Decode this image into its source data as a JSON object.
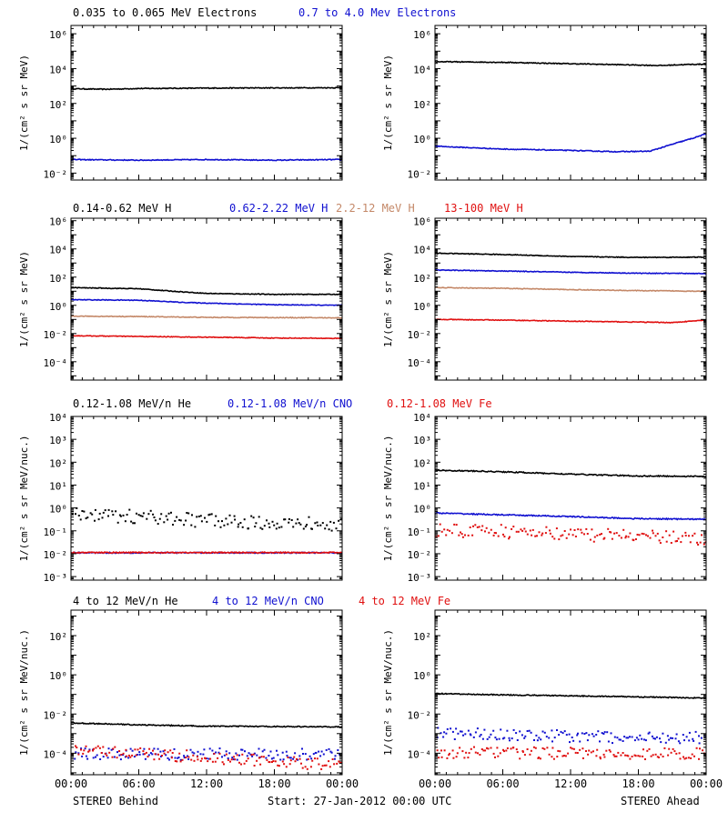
{
  "colors": {
    "black": "#000000",
    "blue": "#1010d0",
    "tan": "#c48868",
    "red": "#e01010"
  },
  "footer": {
    "left": "STEREO Behind",
    "center": "Start: 27-Jan-2012 00:00 UTC",
    "right": "STEREO Ahead"
  },
  "chart_data": [
    {
      "id": "electrons-behind",
      "type": "line",
      "scale": "log",
      "ylim": [
        0.004,
        3000000
      ],
      "yticks": [
        [
          "10⁻²",
          0.01
        ],
        [
          "10⁰",
          1
        ],
        [
          "10²",
          100
        ],
        [
          "10⁴",
          10000
        ],
        [
          "10⁶",
          1000000
        ]
      ],
      "ylabel": "1/(cm² s sr MeV)",
      "xticks": [],
      "header": [
        {
          "text": "0.035 to 0.065 MeV Electrons",
          "color": "#000000"
        },
        {
          "text": "0.7 to 4.0 Mev Electrons",
          "color": "#1010d0"
        }
      ],
      "series": [
        {
          "color": "#000000",
          "style": "line",
          "points": [
            [
              0,
              700
            ],
            [
              3,
              650
            ],
            [
              6,
              720
            ],
            [
              12,
              760
            ],
            [
              18,
              780
            ],
            [
              24,
              800
            ]
          ]
        },
        {
          "color": "#1010d0",
          "style": "line",
          "points": [
            [
              0,
              0.06
            ],
            [
              6,
              0.055
            ],
            [
              12,
              0.06
            ],
            [
              18,
              0.055
            ],
            [
              24,
              0.06
            ]
          ]
        }
      ]
    },
    {
      "id": "electrons-ahead",
      "type": "line",
      "scale": "log",
      "ylim": [
        0.004,
        3000000
      ],
      "yticks": [
        [
          "10⁻²",
          0.01
        ],
        [
          "10⁰",
          1
        ],
        [
          "10²",
          100
        ],
        [
          "10⁴",
          10000
        ],
        [
          "10⁶",
          1000000
        ]
      ],
      "ylabel": "1/(cm² s sr MeV)",
      "xticks": [],
      "header": [],
      "series": [
        {
          "color": "#000000",
          "style": "line",
          "points": [
            [
              0,
              25000
            ],
            [
              6,
              23000
            ],
            [
              12,
              19000
            ],
            [
              18,
              16000
            ],
            [
              20,
              15000
            ],
            [
              22,
              17000
            ],
            [
              24,
              18000
            ]
          ]
        },
        {
          "color": "#1010d0",
          "style": "line",
          "points": [
            [
              0,
              0.35
            ],
            [
              6,
              0.24
            ],
            [
              12,
              0.2
            ],
            [
              16,
              0.17
            ],
            [
              19,
              0.18
            ],
            [
              21,
              0.45
            ],
            [
              23,
              1.1
            ],
            [
              24,
              1.8
            ]
          ]
        }
      ]
    },
    {
      "id": "protons-behind",
      "type": "line",
      "scale": "log",
      "ylim": [
        5e-06,
        1500000
      ],
      "yticks": [
        [
          "10⁻⁴",
          0.0001
        ],
        [
          "10⁻²",
          0.01
        ],
        [
          "10⁰",
          1
        ],
        [
          "10²",
          100
        ],
        [
          "10⁴",
          10000
        ],
        [
          "10⁶",
          1000000
        ]
      ],
      "ylabel": "1/(cm² s sr MeV)",
      "xticks": [],
      "header": [
        {
          "text": "0.14-0.62 MeV H",
          "color": "#000000"
        },
        {
          "text": "0.62-2.22 MeV H",
          "color": "#1010d0"
        },
        {
          "text": "2.2-12 MeV H",
          "color": "#c48868"
        },
        {
          "text": "13-100 MeV H",
          "color": "#e01010"
        }
      ],
      "series": [
        {
          "color": "#000000",
          "style": "line",
          "points": [
            [
              0,
              18
            ],
            [
              6,
              15
            ],
            [
              9,
              10
            ],
            [
              12,
              7
            ],
            [
              18,
              6
            ],
            [
              24,
              6
            ]
          ]
        },
        {
          "color": "#1010d0",
          "style": "line",
          "points": [
            [
              0,
              2.5
            ],
            [
              6,
              2.3
            ],
            [
              10,
              1.6
            ],
            [
              14,
              1.3
            ],
            [
              18,
              1.1
            ],
            [
              24,
              1.0
            ]
          ]
        },
        {
          "color": "#c48868",
          "style": "line",
          "points": [
            [
              0,
              0.17
            ],
            [
              6,
              0.16
            ],
            [
              12,
              0.14
            ],
            [
              18,
              0.135
            ],
            [
              24,
              0.13
            ]
          ]
        },
        {
          "color": "#e01010",
          "style": "line",
          "points": [
            [
              0,
              0.007
            ],
            [
              6,
              0.0062
            ],
            [
              12,
              0.0055
            ],
            [
              18,
              0.0048
            ],
            [
              24,
              0.0045
            ]
          ]
        }
      ]
    },
    {
      "id": "protons-ahead",
      "type": "line",
      "scale": "log",
      "ylim": [
        5e-06,
        1500000
      ],
      "yticks": [
        [
          "10⁻⁴",
          0.0001
        ],
        [
          "10⁻²",
          0.01
        ],
        [
          "10⁰",
          1
        ],
        [
          "10²",
          100
        ],
        [
          "10⁴",
          10000
        ],
        [
          "10⁶",
          1000000
        ]
      ],
      "ylabel": "1/(cm² s sr MeV)",
      "xticks": [],
      "header": [],
      "series": [
        {
          "color": "#000000",
          "style": "line",
          "points": [
            [
              0,
              5000
            ],
            [
              6,
              4000
            ],
            [
              12,
              2900
            ],
            [
              18,
              2500
            ],
            [
              24,
              2600
            ]
          ]
        },
        {
          "color": "#1010d0",
          "style": "line",
          "points": [
            [
              0,
              320
            ],
            [
              6,
              270
            ],
            [
              12,
              220
            ],
            [
              18,
              190
            ],
            [
              24,
              180
            ]
          ]
        },
        {
          "color": "#c48868",
          "style": "line",
          "points": [
            [
              0,
              18
            ],
            [
              6,
              16
            ],
            [
              12,
              13
            ],
            [
              18,
              11
            ],
            [
              24,
              10
            ]
          ]
        },
        {
          "color": "#e01010",
          "style": "line",
          "points": [
            [
              0,
              0.1
            ],
            [
              6,
              0.09
            ],
            [
              12,
              0.075
            ],
            [
              18,
              0.065
            ],
            [
              21,
              0.06
            ],
            [
              24,
              0.09
            ]
          ]
        }
      ]
    },
    {
      "id": "heavy-low-behind",
      "type": "scatter",
      "scale": "log",
      "ylim": [
        0.0007,
        10000
      ],
      "yticks": [
        [
          "10⁻³",
          0.001
        ],
        [
          "10⁻²",
          0.01
        ],
        [
          "10⁻¹",
          0.1
        ],
        [
          "10⁰",
          1
        ],
        [
          "10¹",
          10
        ],
        [
          "10²",
          100
        ],
        [
          "10³",
          1000
        ],
        [
          "10⁴",
          10000
        ]
      ],
      "ylabel": "1/(cm² s sr MeV/nuc.)",
      "xticks": [],
      "header": [
        {
          "text": "0.12-1.08 MeV/n He",
          "color": "#000000"
        },
        {
          "text": "0.12-1.08 MeV/n CNO",
          "color": "#1010d0"
        },
        {
          "text": "0.12-1.08 MeV Fe",
          "color": "#e01010"
        }
      ],
      "series": [
        {
          "color": "#000000",
          "style": "scatter",
          "points": [
            [
              0,
              0.55
            ],
            [
              6,
              0.45
            ],
            [
              12,
              0.3
            ],
            [
              18,
              0.25
            ],
            [
              24,
              0.2
            ]
          ]
        },
        {
          "color": "#1010d0",
          "style": "line",
          "points": [
            [
              0,
              0.011
            ],
            [
              24,
              0.011
            ]
          ]
        },
        {
          "color": "#e01010",
          "style": "line",
          "points": [
            [
              0,
              0.0112
            ],
            [
              24,
              0.0112
            ]
          ]
        }
      ]
    },
    {
      "id": "heavy-low-ahead",
      "type": "scatter",
      "scale": "log",
      "ylim": [
        0.0007,
        10000
      ],
      "yticks": [
        [
          "10⁻³",
          0.001
        ],
        [
          "10⁻²",
          0.01
        ],
        [
          "10⁻¹",
          0.1
        ],
        [
          "10⁰",
          1
        ],
        [
          "10¹",
          10
        ],
        [
          "10²",
          100
        ],
        [
          "10³",
          1000
        ],
        [
          "10⁴",
          10000
        ]
      ],
      "ylabel": "1/(cm² s sr MeV/nuc.)",
      "xticks": [],
      "header": [],
      "series": [
        {
          "color": "#000000",
          "style": "line",
          "points": [
            [
              0,
              45
            ],
            [
              6,
              38
            ],
            [
              12,
              30
            ],
            [
              18,
              25
            ],
            [
              24,
              24
            ]
          ]
        },
        {
          "color": "#1010d0",
          "style": "line",
          "points": [
            [
              0,
              0.6
            ],
            [
              6,
              0.5
            ],
            [
              12,
              0.42
            ],
            [
              18,
              0.34
            ],
            [
              24,
              0.32
            ]
          ]
        },
        {
          "color": "#e01010",
          "style": "scatter",
          "points": [
            [
              0,
              0.12
            ],
            [
              6,
              0.1
            ],
            [
              12,
              0.08
            ],
            [
              18,
              0.06
            ],
            [
              24,
              0.05
            ]
          ]
        }
      ]
    },
    {
      "id": "heavy-high-behind",
      "type": "scatter",
      "scale": "log",
      "ylim": [
        8e-06,
        2000
      ],
      "yticks": [
        [
          "10⁻⁴",
          0.0001
        ],
        [
          "10⁻²",
          0.01
        ],
        [
          "10⁰",
          1
        ],
        [
          "10²",
          100
        ]
      ],
      "ylabel": "1/(cm² s sr MeV/nuc.)",
      "xticks": [
        "00:00",
        "06:00",
        "12:00",
        "18:00",
        "00:00"
      ],
      "header": [
        {
          "text": "4 to 12 MeV/n He",
          "color": "#000000"
        },
        {
          "text": "4 to 12 MeV/n CNO",
          "color": "#1010d0"
        },
        {
          "text": "4 to 12 MeV Fe",
          "color": "#e01010"
        }
      ],
      "series": [
        {
          "color": "#000000",
          "style": "line",
          "points": [
            [
              0,
              0.0035
            ],
            [
              6,
              0.0028
            ],
            [
              12,
              0.0024
            ],
            [
              18,
              0.0023
            ],
            [
              24,
              0.0022
            ]
          ]
        },
        {
          "color": "#1010d0",
          "style": "scatter",
          "points": [
            [
              0,
              0.0001
            ],
            [
              24,
              0.0001
            ]
          ]
        },
        {
          "color": "#e01010",
          "style": "scatter",
          "points": [
            [
              4,
              0.00013
            ],
            [
              22,
              3e-05
            ]
          ]
        }
      ]
    },
    {
      "id": "heavy-high-ahead",
      "type": "scatter",
      "scale": "log",
      "ylim": [
        8e-06,
        2000
      ],
      "yticks": [
        [
          "10⁻⁴",
          0.0001
        ],
        [
          "10⁻²",
          0.01
        ],
        [
          "10⁰",
          1
        ],
        [
          "10²",
          100
        ]
      ],
      "ylabel": "1/(cm² s sr MeV/nuc.)",
      "xticks": [
        "00:00",
        "06:00",
        "12:00",
        "18:00",
        "00:00"
      ],
      "header": [],
      "series": [
        {
          "color": "#000000",
          "style": "line",
          "points": [
            [
              0,
              0.11
            ],
            [
              6,
              0.095
            ],
            [
              12,
              0.085
            ],
            [
              18,
              0.075
            ],
            [
              24,
              0.065
            ]
          ]
        },
        {
          "color": "#1010d0",
          "style": "scatter",
          "points": [
            [
              0,
              0.0012
            ],
            [
              6,
              0.001
            ],
            [
              12,
              0.0008
            ],
            [
              18,
              0.0007
            ],
            [
              24,
              0.0007
            ]
          ]
        },
        {
          "color": "#e01010",
          "style": "scatter",
          "points": [
            [
              0,
              0.00012
            ],
            [
              24,
              0.0001
            ]
          ]
        }
      ]
    }
  ]
}
